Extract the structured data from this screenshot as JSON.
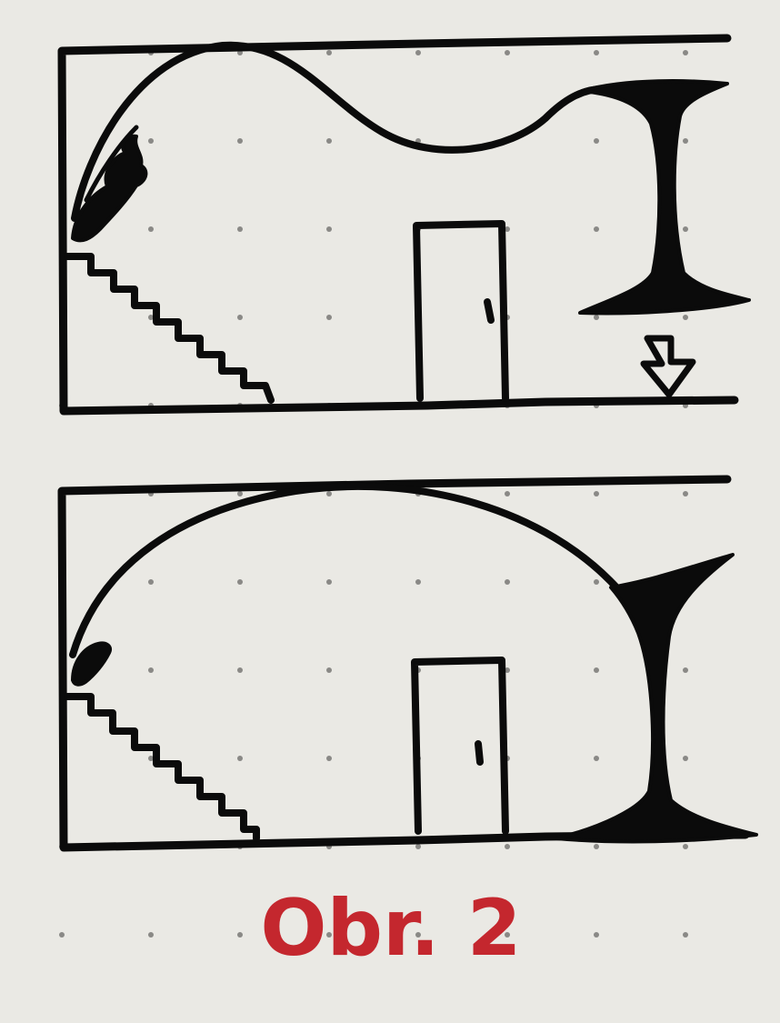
{
  "caption": "Obr. 2",
  "colors": {
    "paper": "#eae9e4",
    "ink": "#0b0b0b",
    "dot_grid": "#8a8986",
    "caption": "#c4272e"
  },
  "panels": [
    {
      "name": "top-panel",
      "elements": [
        "room-frame",
        "wavy-ceiling",
        "stairs",
        "door",
        "door-knob",
        "flame-figure",
        "ink-pillar",
        "down-arrow"
      ]
    },
    {
      "name": "bottom-panel",
      "elements": [
        "room-frame",
        "arched-ceiling",
        "stairs",
        "door",
        "door-knob",
        "flame-figure",
        "ink-pillar"
      ]
    }
  ]
}
